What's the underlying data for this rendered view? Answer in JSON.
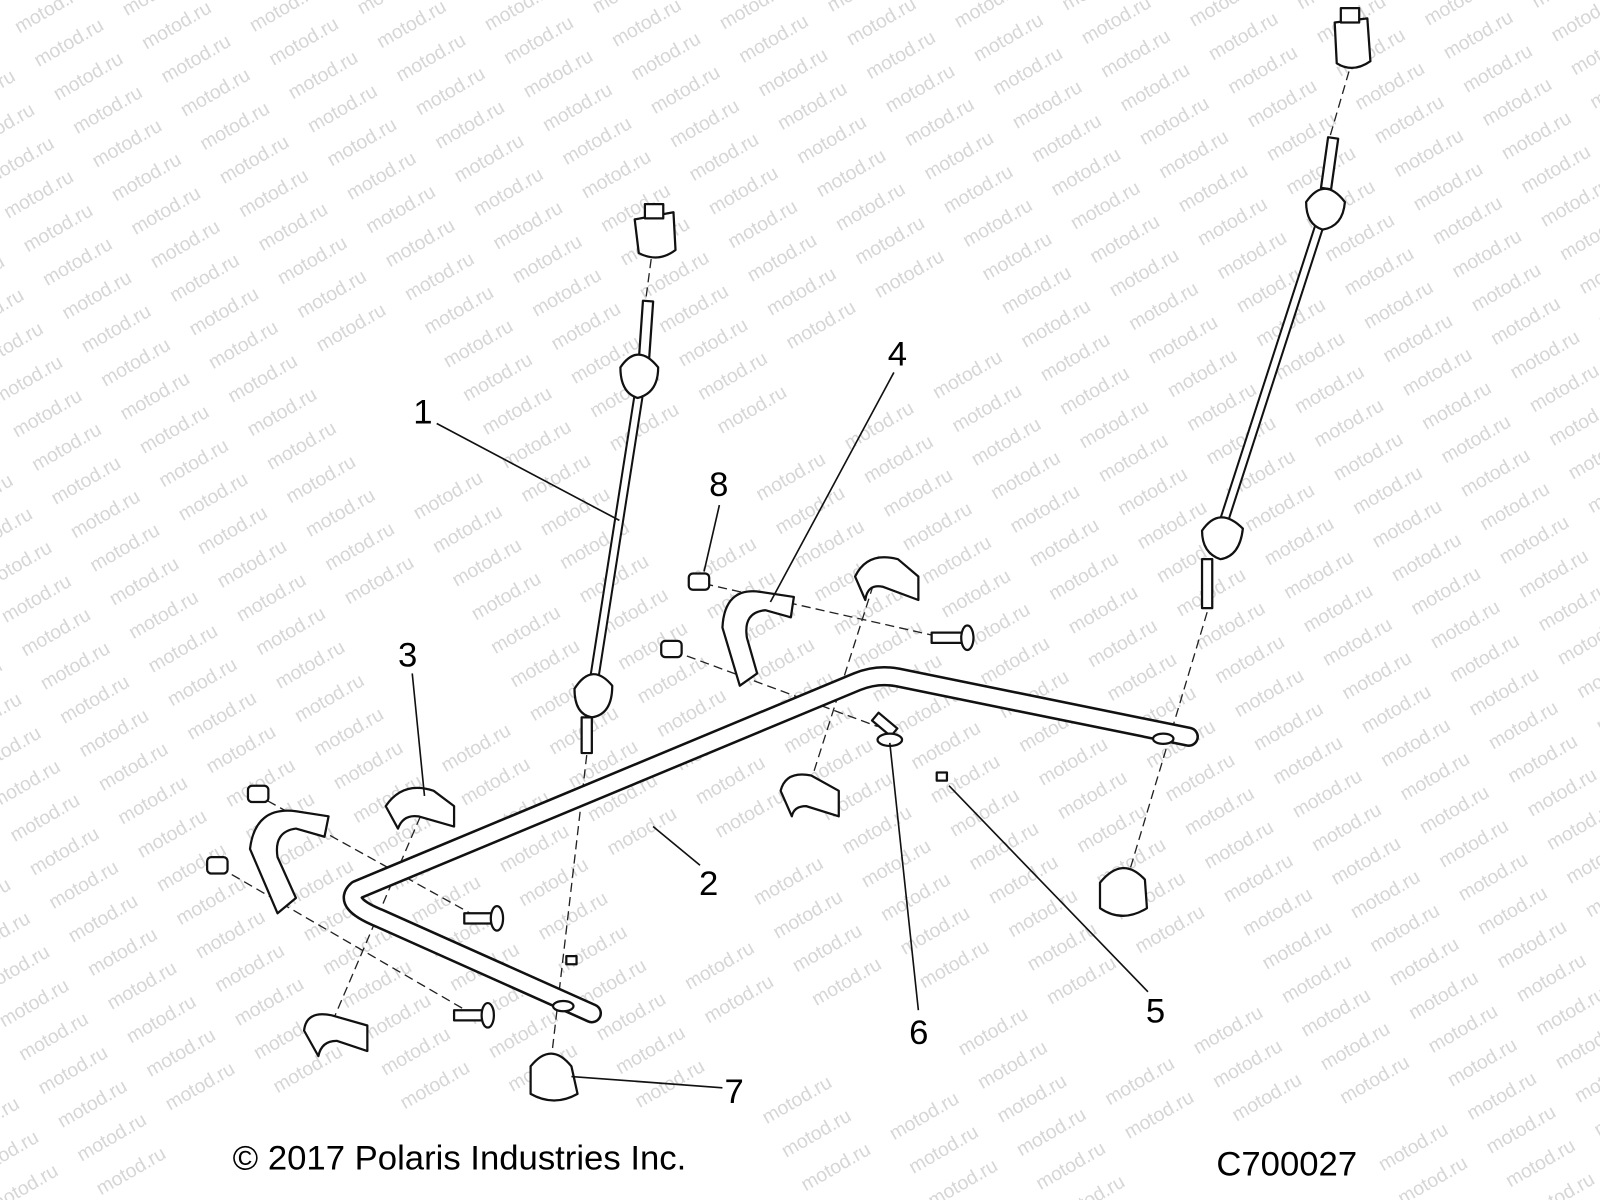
{
  "watermark": "motod.ru",
  "callouts": [
    "1",
    "2",
    "3",
    "4",
    "5",
    "6",
    "7",
    "8"
  ],
  "footer": {
    "copyright": "© 2017 Polaris Industries Inc.",
    "diagram_code": "C700027"
  }
}
